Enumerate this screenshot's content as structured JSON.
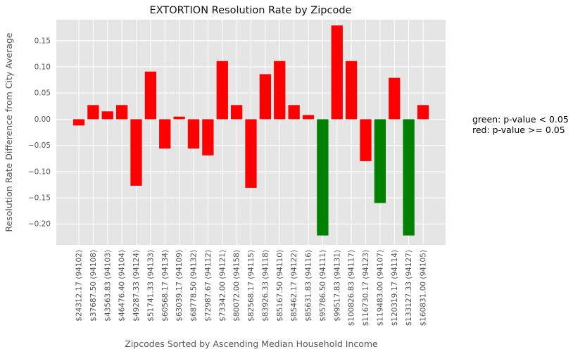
{
  "chart_data": {
    "type": "bar",
    "title": "EXTORTION Resolution Rate by Zipcode",
    "xlabel": "Zipcodes Sorted by Ascending Median Household Income",
    "ylabel": "Resolution Rate Difference from City Average",
    "ylim": [
      -0.24,
      0.19
    ],
    "yticks": [
      0.15,
      0.1,
      0.05,
      0.0,
      -0.05,
      -0.1,
      -0.15,
      -0.2
    ],
    "ytick_labels": [
      "0.15",
      "0.10",
      "0.05",
      "0.00",
      "−0.05",
      "−0.10",
      "−0.15",
      "−0.20"
    ],
    "grid": true,
    "background": "#e5e5e5",
    "colors": {
      "significant": "#008000",
      "not_significant": "#ff0000"
    },
    "categories": [
      "$24312.17 (94102)",
      "$37687.50 (94108)",
      "$43563.83 (94103)",
      "$46476.40 (94104)",
      "$49287.33 (94124)",
      "$51741.33 (94133)",
      "$60568.17 (94134)",
      "$63039.17 (94109)",
      "$68778.50 (94132)",
      "$72987.67 (94112)",
      "$73342.00 (94121)",
      "$80072.00 (94158)",
      "$82568.17 (94115)",
      "$83926.33 (94118)",
      "$85167.50 (94110)",
      "$85462.17 (94122)",
      "$85631.83 (94116)",
      "$95786.50 (94111)",
      "$99517.83 (94131)",
      "$100826.83 (94117)",
      "$116730.17 (94123)",
      "$119483.00 (94107)",
      "$120319.17 (94114)",
      "$133127.33 (94127)",
      "$160831.00 (94105)"
    ],
    "values": [
      -0.012,
      0.027,
      0.015,
      0.027,
      -0.127,
      0.091,
      -0.056,
      0.005,
      -0.056,
      -0.069,
      0.111,
      0.027,
      -0.131,
      0.086,
      0.111,
      0.027,
      0.008,
      -0.222,
      0.179,
      0.111,
      -0.08,
      -0.16,
      0.079,
      -0.222,
      0.027
    ],
    "significant": [
      false,
      false,
      false,
      false,
      false,
      false,
      false,
      false,
      false,
      false,
      false,
      false,
      false,
      false,
      false,
      false,
      false,
      true,
      false,
      false,
      false,
      true,
      false,
      true,
      false
    ],
    "legend": {
      "placement": "right",
      "lines": [
        "green: p-value < 0.05",
        "red: p-value >= 0.05"
      ]
    }
  }
}
